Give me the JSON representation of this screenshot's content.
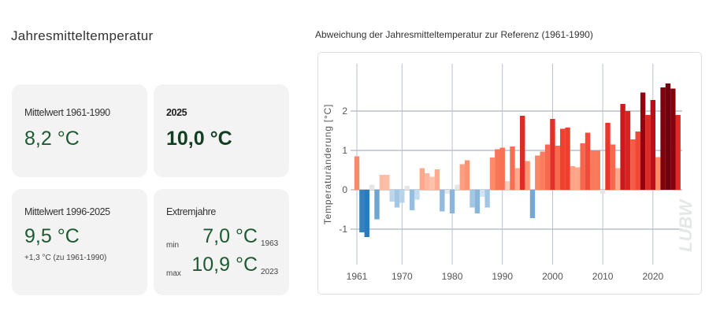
{
  "page_title": "Jahresmitteltemperatur",
  "cards": {
    "ref": {
      "label": "Mittelwert 1961-1990",
      "value": "8,2 °C"
    },
    "current": {
      "label": "2025",
      "value": "10,0 °C"
    },
    "recent": {
      "label": "Mittelwert 1996-2025",
      "value": "9,5 °C",
      "delta": "+1,3 °C (zu 1961-1990)"
    },
    "extremes": {
      "label": "Extremjahre",
      "min_label": "min",
      "min_value": "7,0 °C",
      "min_year": "1963",
      "max_label": "max",
      "max_value": "10,9 °C",
      "max_year": "2023"
    }
  },
  "chart_data": {
    "type": "bar",
    "title": "Abweichung der Jahresmitteltemperatur zur Referenz (1961-1990)",
    "xlabel": "",
    "ylabel": "Temperaturänderung [°C]",
    "ylim": [
      -1.9,
      3.2
    ],
    "yticks": [
      -1,
      0,
      1,
      2
    ],
    "xticks": [
      1961,
      1970,
      1980,
      1990,
      2000,
      2010,
      2020
    ],
    "grid": true,
    "watermark": "LUBW",
    "colors": {
      "negative": "#2b7bba",
      "positive": "#67000d",
      "neutral": "#e6e6e8"
    },
    "categories": [
      1961,
      1962,
      1963,
      1964,
      1965,
      1966,
      1967,
      1968,
      1969,
      1970,
      1971,
      1972,
      1973,
      1974,
      1975,
      1976,
      1977,
      1978,
      1979,
      1980,
      1981,
      1982,
      1983,
      1984,
      1985,
      1986,
      1987,
      1988,
      1989,
      1990,
      1991,
      1992,
      1993,
      1994,
      1995,
      1996,
      1997,
      1998,
      1999,
      2000,
      2001,
      2002,
      2003,
      2004,
      2005,
      2006,
      2007,
      2008,
      2009,
      2010,
      2011,
      2012,
      2013,
      2014,
      2015,
      2016,
      2017,
      2018,
      2019,
      2020,
      2021,
      2022,
      2023,
      2024,
      2025
    ],
    "values": [
      0.85,
      -1.08,
      -1.2,
      0.13,
      -0.75,
      0.38,
      0.38,
      -0.3,
      -0.45,
      -0.33,
      0.1,
      -0.52,
      -0.25,
      0.55,
      0.42,
      0.33,
      0.52,
      -0.55,
      -0.1,
      -0.6,
      0.13,
      0.65,
      0.75,
      -0.45,
      -0.6,
      -0.18,
      -0.45,
      0.82,
      1.03,
      1.07,
      0.22,
      1.1,
      0.55,
      1.88,
      0.73,
      -0.72,
      0.87,
      0.97,
      1.15,
      1.8,
      1.12,
      1.55,
      1.58,
      0.6,
      0.57,
      1.18,
      1.45,
      1.0,
      1.0,
      -0.1,
      1.7,
      1.15,
      0.55,
      2.18,
      2.0,
      1.28,
      1.48,
      2.47,
      1.9,
      2.28,
      0.83,
      2.6,
      2.7,
      2.57,
      1.9
    ]
  }
}
